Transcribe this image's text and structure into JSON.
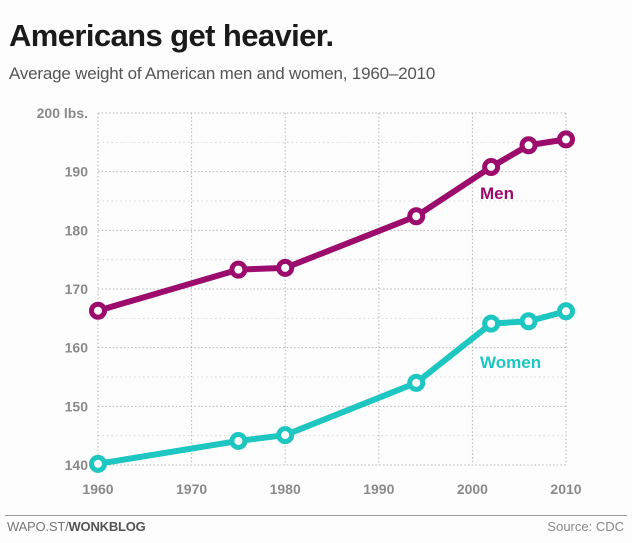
{
  "header": {
    "title": "Americans get heavier.",
    "subtitle": "Average weight of American men and women, 1960–2010"
  },
  "footer": {
    "credit_prefix": "WAPO.ST/",
    "credit_bold": "WONKBLOG",
    "source": "Source: CDC"
  },
  "colors": {
    "men": "#9c0c6c",
    "women": "#1dc6c1",
    "grid": "#b5b5b5",
    "tick_label": "#8a8a8a"
  },
  "chart_data": {
    "type": "line",
    "title": "Americans get heavier.",
    "subtitle": "Average weight of American men and women, 1960–2010",
    "xlabel": "",
    "ylabel": "",
    "xlim": [
      1960,
      2010
    ],
    "ylim": [
      140,
      200
    ],
    "x_ticks": [
      1960,
      1970,
      1980,
      1990,
      2000,
      2010
    ],
    "x_tick_labels": [
      "1960",
      "1970",
      "1980",
      "1990",
      "2000",
      "2010"
    ],
    "y_ticks": [
      140,
      150,
      160,
      170,
      180,
      190,
      200
    ],
    "y_tick_labels": [
      "140",
      "150",
      "160",
      "170",
      "180",
      "190",
      "200 lbs."
    ],
    "y_minor_ticks": [
      145,
      155,
      165,
      175,
      185,
      195
    ],
    "grid": true,
    "legend": "inline labels near 2000 on each series",
    "series": [
      {
        "name": "Men",
        "label": "Men",
        "color": "#9c0c6c",
        "x": [
          1960,
          1975,
          1980,
          1994,
          2002,
          2006,
          2010
        ],
        "values": [
          166.3,
          173.3,
          173.6,
          182.4,
          190.8,
          194.5,
          195.5
        ]
      },
      {
        "name": "Women",
        "label": "Women",
        "color": "#1dc6c1",
        "x": [
          1960,
          1975,
          1980,
          1994,
          2002,
          2006,
          2010
        ],
        "values": [
          140.2,
          144.1,
          145.1,
          154.0,
          164.1,
          164.5,
          166.2
        ]
      }
    ]
  }
}
